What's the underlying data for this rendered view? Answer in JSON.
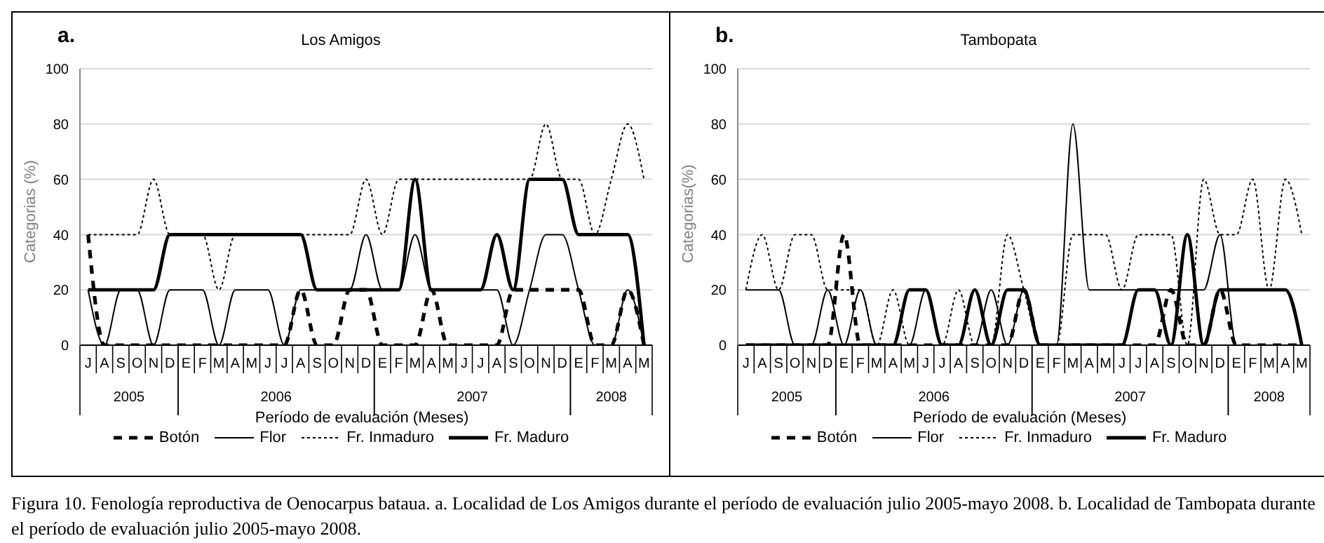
{
  "chart_data": [
    {
      "type": "line",
      "title": "Los Amigos",
      "xlabel": "Período de evaluación (Meses)",
      "ylabel": "Categorias (%)",
      "categories": [
        "J",
        "A",
        "S",
        "O",
        "N",
        "D",
        "E",
        "F",
        "M",
        "A",
        "M",
        "J",
        "J",
        "A",
        "S",
        "O",
        "N",
        "D",
        "E",
        "F",
        "M",
        "A",
        "M",
        "J",
        "J",
        "A",
        "S",
        "O",
        "N",
        "D",
        "E",
        "F",
        "M",
        "A",
        "M"
      ],
      "ylim": [
        0,
        100
      ],
      "yticks": [
        0,
        20,
        40,
        60,
        80,
        100
      ],
      "grid": "y",
      "legend": "bottom",
      "marker": "none",
      "series": [
        {
          "name": "Botón",
          "color": "#000000",
          "line_style": "dashed",
          "values": [
            40,
            0,
            0,
            0,
            0,
            0,
            0,
            0,
            0,
            0,
            0,
            0,
            0,
            20,
            0,
            0,
            20,
            20,
            0,
            0,
            0,
            20,
            0,
            0,
            0,
            0,
            20,
            20,
            20,
            20,
            20,
            0,
            0,
            20,
            0
          ]
        },
        {
          "name": "Flor",
          "color": "#000000",
          "line_style": "solid",
          "values": [
            20,
            0,
            20,
            20,
            0,
            20,
            20,
            20,
            0,
            20,
            20,
            20,
            0,
            20,
            20,
            20,
            20,
            40,
            20,
            20,
            40,
            20,
            20,
            20,
            20,
            20,
            0,
            20,
            40,
            40,
            20,
            0,
            0,
            20,
            0
          ]
        },
        {
          "name": "Fr. Inmaduro",
          "color": "#000000",
          "line_style": "dotted",
          "values": [
            40,
            40,
            40,
            40,
            60,
            40,
            40,
            40,
            20,
            40,
            40,
            40,
            40,
            40,
            40,
            40,
            40,
            60,
            40,
            60,
            60,
            60,
            60,
            60,
            60,
            60,
            60,
            60,
            80,
            60,
            60,
            40,
            60,
            80,
            60
          ]
        },
        {
          "name": "Fr. Maduro",
          "color": "#000000",
          "line_style": "solid",
          "values": [
            20,
            20,
            20,
            20,
            20,
            40,
            40,
            40,
            40,
            40,
            40,
            40,
            40,
            40,
            20,
            20,
            20,
            20,
            20,
            20,
            60,
            20,
            20,
            20,
            20,
            40,
            20,
            60,
            60,
            60,
            40,
            40,
            40,
            40,
            0
          ]
        }
      ],
      "annotations": [
        "a.",
        "2005",
        "2006",
        "2007",
        "2008",
        "Figura 10. Fenología reproductiva de Oenocarpus bataua. a. Localidad de Los Amigos durante el período de evaluación julio 2005-mayo 2008. b. Localidad de Tambopata durante el período de evaluación julio 2005-mayo 2008."
      ]
    },
    {
      "type": "line",
      "title": "Tambopata",
      "xlabel": "Período de evaluación (Meses)",
      "ylabel": "Categorias(%)",
      "categories": [
        "J",
        "A",
        "S",
        "O",
        "N",
        "D",
        "E",
        "F",
        "M",
        "A",
        "M",
        "J",
        "J",
        "A",
        "S",
        "O",
        "N",
        "D",
        "E",
        "F",
        "M",
        "A",
        "M",
        "J",
        "J",
        "A",
        "S",
        "O",
        "N",
        "D",
        "E",
        "F",
        "M",
        "A",
        "M"
      ],
      "ylim": [
        0,
        100
      ],
      "yticks": [
        0,
        20,
        40,
        60,
        80,
        100
      ],
      "grid": "y",
      "legend": "bottom",
      "marker": "none",
      "series": [
        {
          "name": "Botón",
          "color": "#000000",
          "line_style": "dashed",
          "values": [
            0,
            0,
            0,
            0,
            0,
            0,
            40,
            0,
            0,
            0,
            0,
            0,
            0,
            0,
            0,
            0,
            0,
            20,
            0,
            0,
            0,
            0,
            0,
            0,
            0,
            0,
            20,
            0,
            0,
            20,
            0,
            0,
            0,
            0,
            0
          ]
        },
        {
          "name": "Flor",
          "color": "#000000",
          "line_style": "solid",
          "values": [
            20,
            20,
            20,
            0,
            0,
            20,
            0,
            20,
            0,
            0,
            0,
            20,
            0,
            0,
            0,
            20,
            0,
            20,
            0,
            0,
            80,
            20,
            20,
            20,
            20,
            20,
            20,
            20,
            20,
            40,
            0,
            0,
            0,
            0,
            0
          ]
        },
        {
          "name": "Fr. Inmaduro",
          "color": "#000000",
          "line_style": "dotted",
          "values": [
            20,
            40,
            20,
            40,
            40,
            20,
            20,
            20,
            0,
            20,
            0,
            0,
            0,
            20,
            0,
            0,
            40,
            20,
            0,
            0,
            40,
            40,
            40,
            20,
            40,
            40,
            40,
            0,
            60,
            40,
            40,
            60,
            20,
            60,
            40
          ]
        },
        {
          "name": "Fr. Maduro",
          "color": "#000000",
          "line_style": "solid",
          "values": [
            0,
            0,
            0,
            0,
            0,
            0,
            0,
            0,
            0,
            0,
            20,
            20,
            0,
            0,
            20,
            0,
            20,
            20,
            0,
            0,
            0,
            0,
            0,
            0,
            20,
            20,
            0,
            40,
            0,
            20,
            20,
            20,
            20,
            20,
            0
          ]
        }
      ],
      "annotations": [
        "b.",
        "2005",
        "2006",
        "2007",
        "2008"
      ]
    }
  ]
}
